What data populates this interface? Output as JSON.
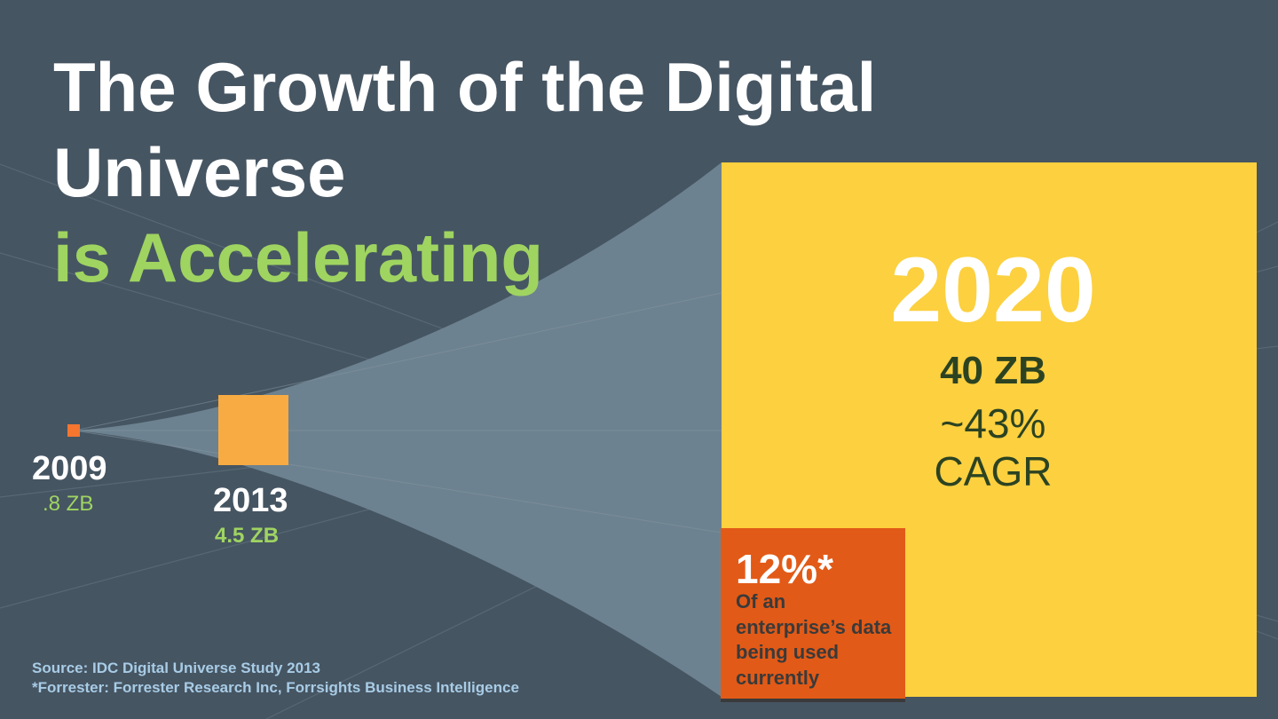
{
  "slide": {
    "title_line1": "The Growth of the Digital",
    "title_line2": "Universe",
    "title_line3": "is Accelerating"
  },
  "milestones": [
    {
      "year": "2009",
      "amount": ".8 ZB"
    },
    {
      "year": "2013",
      "amount": "4.5 ZB"
    },
    {
      "year": "2020",
      "amount": "40 ZB",
      "growth": "~43%",
      "growth_label": "CAGR"
    }
  ],
  "callout": {
    "percent": "12%*",
    "description": "Of an enterprise’s data being used currently"
  },
  "sources": {
    "line1": "Source: IDC Digital Universe Study 2013",
    "line2": "*Forrester: Forrester Research Inc, Forrsights Business Intelligence"
  },
  "colors": {
    "background": "#465562",
    "title": "#ffffff",
    "accent_green": "#9fd461",
    "cone": "#6d8290",
    "square_2009": "#f4762f",
    "square_2013": "#f8ab42",
    "square_2020": "#fcd03f",
    "callout": "#e25a17",
    "dark_text": "#2c4322",
    "source_text": "#a8cce6"
  }
}
